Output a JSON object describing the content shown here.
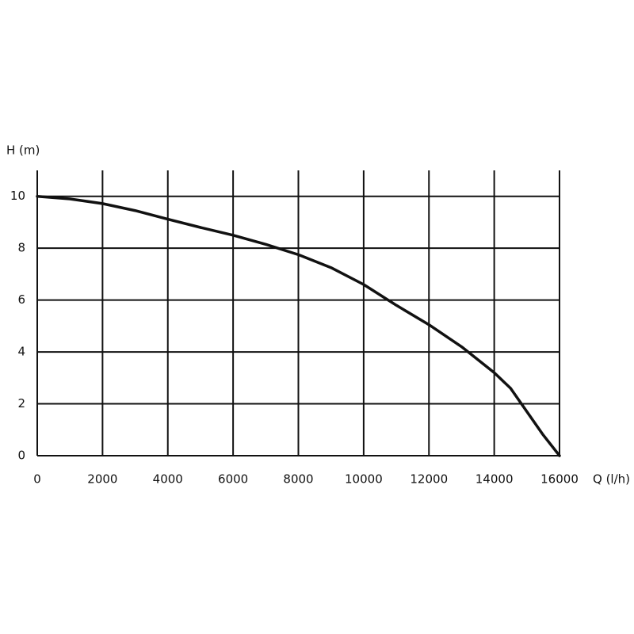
{
  "chart_data": {
    "type": "line",
    "xlabel": "Q (l/h)",
    "ylabel": "H (m)",
    "x": [
      0,
      1000,
      2000,
      3000,
      4000,
      5000,
      6000,
      7000,
      8000,
      9000,
      10000,
      11000,
      12000,
      13000,
      14000,
      14500,
      15000,
      15500,
      16000
    ],
    "series": [
      {
        "color": "#111111",
        "values": [
          10,
          9.9,
          9.72,
          9.45,
          9.12,
          8.8,
          8.5,
          8.15,
          7.75,
          7.25,
          6.6,
          5.8,
          5.05,
          4.2,
          3.2,
          2.6,
          1.7,
          0.8,
          0
        ]
      }
    ],
    "xlim": [
      0,
      16000
    ],
    "xticks": [
      0,
      2000,
      4000,
      6000,
      8000,
      10000,
      12000,
      14000,
      16000
    ],
    "ylim": [
      0,
      11
    ],
    "yticks": [
      0,
      2,
      4,
      6,
      8,
      10
    ],
    "grid": true
  }
}
